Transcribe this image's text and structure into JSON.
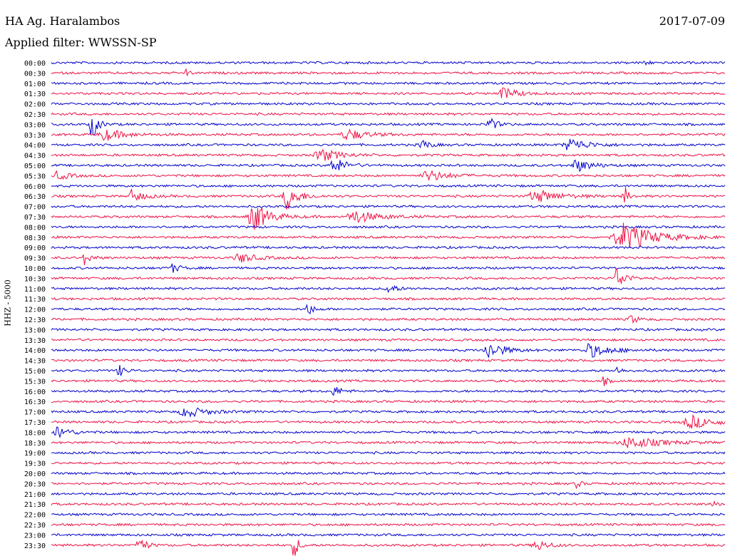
{
  "header": {
    "station": "HA Ag. Haralambos",
    "filter": "Applied filter: WWSSN-SP",
    "date": "2017-07-09"
  },
  "colors": {
    "blue": "#0000cc",
    "red": "#ee1144"
  },
  "chart_data": {
    "type": "line",
    "title": "HA Ag. Haralambos",
    "ylabel": "HHZ - 5000",
    "series_labels": [
      "00:00",
      "00:30",
      "01:00",
      "01:30",
      "02:00",
      "02:30",
      "03:00",
      "03:30",
      "04:00",
      "04:30",
      "05:00",
      "05:30",
      "06:00",
      "06:30",
      "07:00",
      "07:30",
      "08:00",
      "08:30",
      "09:00",
      "09:30",
      "10:00",
      "10:30",
      "11:00",
      "11:30",
      "12:00",
      "12:30",
      "13:00",
      "13:30",
      "14:00",
      "14:30",
      "15:00",
      "15:30",
      "16:00",
      "16:30",
      "17:00",
      "17:30",
      "18:00",
      "18:30",
      "19:00",
      "19:30",
      "20:00",
      "20:30",
      "21:00",
      "21:30",
      "22:00",
      "22:30",
      "23:00",
      "23:30"
    ],
    "color_cycle": [
      "blue",
      "red"
    ],
    "events": [
      {
        "row": 0,
        "t": 0.88,
        "amp": 5,
        "w": 0.01
      },
      {
        "row": 1,
        "t": 0.2,
        "amp": 6,
        "w": 0.008
      },
      {
        "row": 3,
        "t": 0.67,
        "amp": 8,
        "w": 0.04
      },
      {
        "row": 6,
        "t": 0.06,
        "amp": 24,
        "w": 0.015
      },
      {
        "row": 6,
        "t": 0.65,
        "amp": 10,
        "w": 0.02
      },
      {
        "row": 7,
        "t": 0.08,
        "amp": 8,
        "w": 0.05
      },
      {
        "row": 7,
        "t": 0.44,
        "amp": 8,
        "w": 0.05
      },
      {
        "row": 8,
        "t": 0.55,
        "amp": 8,
        "w": 0.02
      },
      {
        "row": 8,
        "t": 0.77,
        "amp": 9,
        "w": 0.05
      },
      {
        "row": 9,
        "t": 0.4,
        "amp": 9,
        "w": 0.05
      },
      {
        "row": 10,
        "t": 0.42,
        "amp": 12,
        "w": 0.03
      },
      {
        "row": 10,
        "t": 0.78,
        "amp": 9,
        "w": 0.04
      },
      {
        "row": 11,
        "t": 0.01,
        "amp": 6,
        "w": 0.03
      },
      {
        "row": 11,
        "t": 0.56,
        "amp": 8,
        "w": 0.05
      },
      {
        "row": 13,
        "t": 0.12,
        "amp": 9,
        "w": 0.03
      },
      {
        "row": 13,
        "t": 0.35,
        "amp": 20,
        "w": 0.03
      },
      {
        "row": 13,
        "t": 0.72,
        "amp": 9,
        "w": 0.06
      },
      {
        "row": 13,
        "t": 0.85,
        "amp": 18,
        "w": 0.01
      },
      {
        "row": 15,
        "t": 0.3,
        "amp": 22,
        "w": 0.04
      },
      {
        "row": 15,
        "t": 0.45,
        "amp": 9,
        "w": 0.06
      },
      {
        "row": 17,
        "t": 0.85,
        "amp": 20,
        "w": 0.08
      },
      {
        "row": 19,
        "t": 0.05,
        "amp": 10,
        "w": 0.015
      },
      {
        "row": 19,
        "t": 0.28,
        "amp": 7,
        "w": 0.04
      },
      {
        "row": 20,
        "t": 0.18,
        "amp": 6,
        "w": 0.02
      },
      {
        "row": 21,
        "t": 0.84,
        "amp": 18,
        "w": 0.02
      },
      {
        "row": 22,
        "t": 0.5,
        "amp": 8,
        "w": 0.02
      },
      {
        "row": 24,
        "t": 0.38,
        "amp": 10,
        "w": 0.015
      },
      {
        "row": 25,
        "t": 0.86,
        "amp": 8,
        "w": 0.015
      },
      {
        "row": 28,
        "t": 0.65,
        "amp": 12,
        "w": 0.04
      },
      {
        "row": 28,
        "t": 0.8,
        "amp": 10,
        "w": 0.05
      },
      {
        "row": 30,
        "t": 0.1,
        "amp": 9,
        "w": 0.015
      },
      {
        "row": 30,
        "t": 0.84,
        "amp": 7,
        "w": 0.01
      },
      {
        "row": 31,
        "t": 0.82,
        "amp": 7,
        "w": 0.01
      },
      {
        "row": 32,
        "t": 0.42,
        "amp": 7,
        "w": 0.02
      },
      {
        "row": 32,
        "t": 0.73,
        "amp": 6,
        "w": 0.01
      },
      {
        "row": 34,
        "t": 0.2,
        "amp": 8,
        "w": 0.05
      },
      {
        "row": 35,
        "t": 0.95,
        "amp": 9,
        "w": 0.06
      },
      {
        "row": 36,
        "t": 0.01,
        "amp": 9,
        "w": 0.03
      },
      {
        "row": 37,
        "t": 0.86,
        "amp": 8,
        "w": 0.08
      },
      {
        "row": 41,
        "t": 0.78,
        "amp": 7,
        "w": 0.01
      },
      {
        "row": 43,
        "t": 0.98,
        "amp": 7,
        "w": 0.01
      },
      {
        "row": 47,
        "t": 0.13,
        "amp": 18,
        "w": 0.015
      },
      {
        "row": 47,
        "t": 0.36,
        "amp": 20,
        "w": 0.012
      },
      {
        "row": 47,
        "t": 0.72,
        "amp": 8,
        "w": 0.03
      }
    ]
  }
}
